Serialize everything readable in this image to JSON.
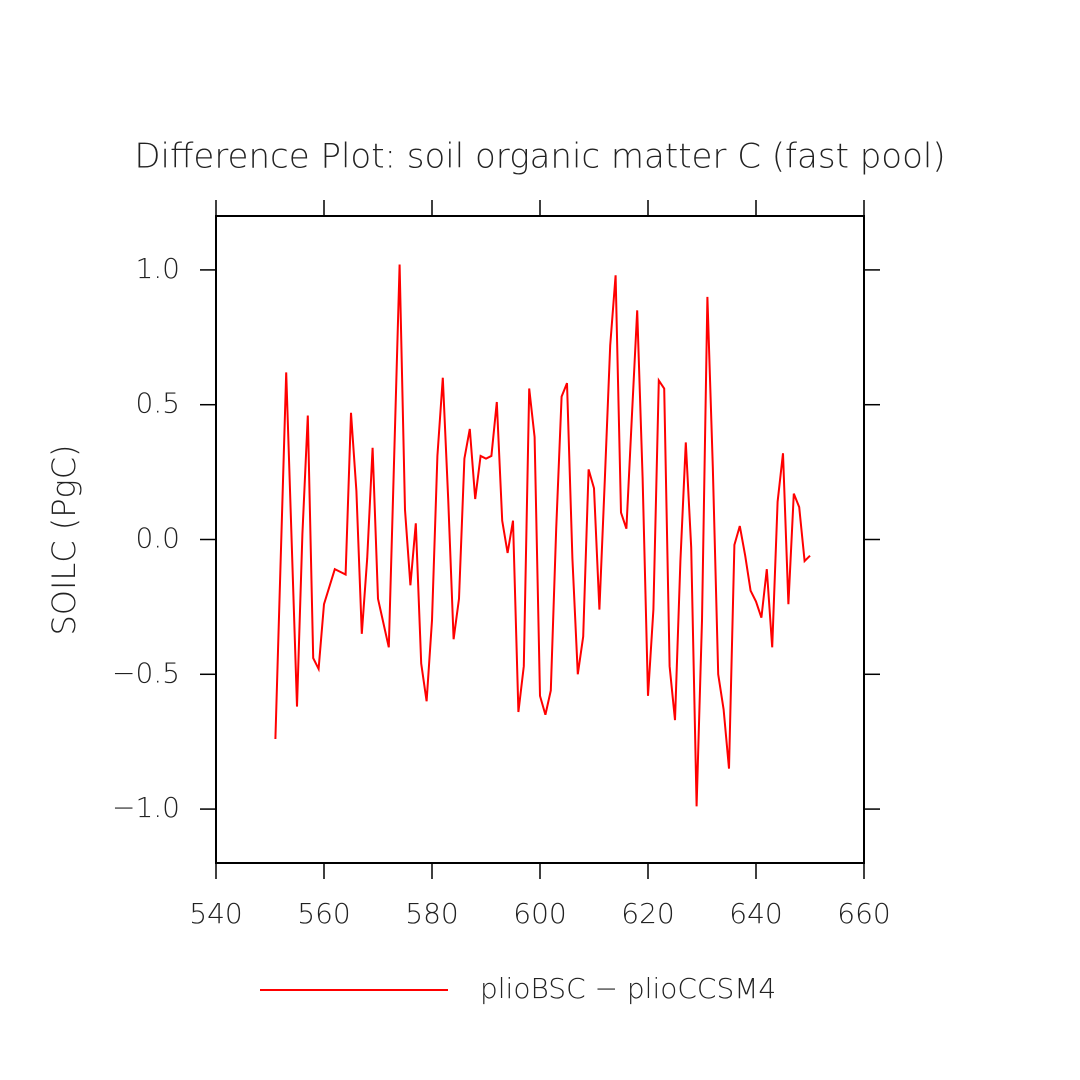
{
  "chart_data": {
    "type": "line",
    "title": "Difference Plot: soil organic matter C (fast pool)",
    "y_label": "SOILC  (PgC)",
    "x": [
      551,
      553,
      555,
      556,
      557,
      558,
      559,
      560,
      562,
      564,
      565,
      566,
      567,
      568,
      569,
      570,
      572,
      574,
      575,
      576,
      577,
      578,
      579,
      580,
      581,
      582,
      583,
      584,
      585,
      586,
      587,
      588,
      589,
      590,
      591,
      592,
      593,
      594,
      595,
      596,
      597,
      598,
      599,
      600,
      601,
      602,
      603,
      604,
      605,
      606,
      607,
      608,
      609,
      610,
      611,
      612,
      613,
      614,
      615,
      616,
      617,
      618,
      619,
      620,
      621,
      622,
      623,
      624,
      625,
      626,
      627,
      628,
      629,
      630,
      631,
      632,
      633,
      634,
      635,
      636,
      637,
      638,
      639,
      640,
      641,
      642,
      643,
      644,
      645,
      646,
      647,
      648,
      649,
      650
    ],
    "series": [
      {
        "name": "plioBSC − plioCCSM4",
        "color": "#ff0000",
        "values": [
          -0.74,
          0.62,
          -0.62,
          0.02,
          0.46,
          -0.44,
          -0.48,
          -0.24,
          -0.11,
          -0.13,
          0.47,
          0.18,
          -0.35,
          -0.07,
          0.34,
          -0.22,
          -0.4,
          1.02,
          0.11,
          -0.17,
          0.06,
          -0.46,
          -0.6,
          -0.3,
          0.31,
          0.6,
          0.15,
          -0.37,
          -0.22,
          0.3,
          0.41,
          0.15,
          0.31,
          0.3,
          0.31,
          0.51,
          0.07,
          -0.05,
          0.07,
          -0.64,
          -0.47,
          0.56,
          0.38,
          -0.58,
          -0.65,
          -0.56,
          0.04,
          0.53,
          0.58,
          -0.07,
          -0.5,
          -0.36,
          0.26,
          0.19,
          -0.26,
          0.22,
          0.72,
          0.98,
          0.1,
          0.04,
          0.45,
          0.85,
          0.23,
          -0.58,
          -0.26,
          0.59,
          0.56,
          -0.47,
          -0.67,
          -0.08,
          0.36,
          -0.03,
          -0.99,
          -0.3,
          0.9,
          0.27,
          -0.5,
          -0.63,
          -0.85,
          -0.02,
          0.05,
          -0.06,
          -0.19,
          -0.23,
          -0.29,
          -0.11,
          -0.4,
          0.14,
          0.32,
          -0.24,
          0.17,
          0.12,
          -0.08,
          -0.06
        ]
      }
    ],
    "xlim": [
      540,
      660
    ],
    "xticks": [
      540,
      560,
      580,
      600,
      620,
      640,
      660
    ],
    "ylim": [
      -1.2,
      1.2
    ],
    "yticks": [
      {
        "value": -1.0,
        "label": "−1.0"
      },
      {
        "value": -0.5,
        "label": "−0.5"
      },
      {
        "value": 0.0,
        "label": "0.0"
      },
      {
        "value": 0.5,
        "label": "0.5"
      },
      {
        "value": 1.0,
        "label": "1.0"
      }
    ]
  }
}
